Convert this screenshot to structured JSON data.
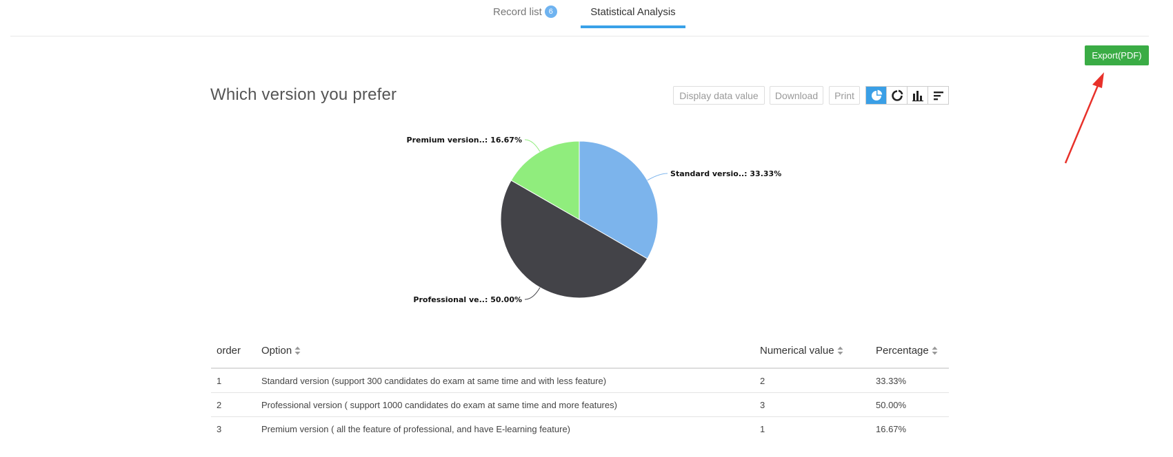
{
  "tabs": [
    {
      "label": "Record list",
      "badge": "6"
    },
    {
      "label": "Statistical Analysis"
    }
  ],
  "export_label": "Export(PDF)",
  "title": "Which version you prefer",
  "toolbar": {
    "display": "Display data value",
    "download": "Download",
    "print": "Print",
    "icons": [
      "pie-chart-icon",
      "ring-chart-icon",
      "bar-chart-icon",
      "horizontal-bar-icon"
    ],
    "active_icon": "pie-chart-icon"
  },
  "chart_data": {
    "type": "pie",
    "title": "",
    "categories": [
      "Standard versio..",
      "Professional ve..",
      "Premium version.."
    ],
    "values": [
      33.33,
      50.0,
      16.67
    ],
    "labels": [
      "Standard versio..: 33.33%",
      "Professional ve..: 50.00%",
      "Premium version..: 16.67%"
    ],
    "colors": [
      "#7cb4ec",
      "#434348",
      "#90ed7d"
    ]
  },
  "table": {
    "headers": [
      "order",
      "Option",
      "Numerical value",
      "Percentage"
    ],
    "rows": [
      {
        "order": "1",
        "option": "Standard version (support 300 candidates do exam at same time and with less feature)",
        "value": "2",
        "percentage": "33.33%"
      },
      {
        "order": "2",
        "option": "Professional version ( support 1000 candidates do exam at same time and more features)",
        "value": "3",
        "percentage": "50.00%"
      },
      {
        "order": "3",
        "option": "Premium version ( all the feature of professional, and have E-learning feature)",
        "value": "1",
        "percentage": "16.67%"
      }
    ]
  },
  "colors": {
    "accent": "#39a1e8",
    "export_green": "#3aac45",
    "arrow_red": "#e8312a"
  }
}
